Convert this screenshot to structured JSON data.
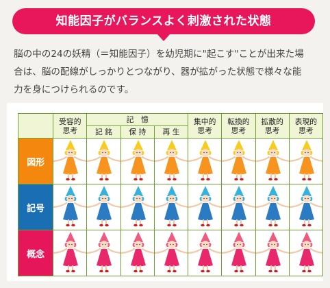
{
  "banner": {
    "title": "知能因子がバランスよく刺激された状態"
  },
  "description": {
    "lines": [
      "脳の中の24の妖精（＝知能因子）を幼児期に\"起こす\"ことが出来た場",
      "合は、脳の配線がしっかりとつながり、器が拡がった状態で様々な能",
      "力を身につけられるのです。"
    ]
  },
  "table": {
    "columns": [
      {
        "label": "受容的\n思考"
      },
      {
        "label": "記　憶",
        "span": 3,
        "sub": [
          "記 銘",
          "保 持",
          "再 生"
        ]
      },
      {
        "label": "集中的\n思考"
      },
      {
        "label": "転換的\n思考"
      },
      {
        "label": "拡散的\n思考"
      },
      {
        "label": "表現的\n思考"
      }
    ],
    "rows": [
      {
        "label": "図形",
        "color": "#f4880e",
        "dress_color": "#f6941f",
        "hat_color": "#f7cc21"
      },
      {
        "label": "記号",
        "color": "#1a6fb4",
        "dress_color": "#2a7bc1",
        "hat_color": "#35b1dd"
      },
      {
        "label": "概念",
        "color": "#e5175a",
        "dress_color": "#e8286a",
        "hat_color": "#ef5a80"
      }
    ]
  },
  "colors": {
    "accent": "#e8165a",
    "border": "#6f9e32",
    "header_bg": "#eff5d5"
  }
}
